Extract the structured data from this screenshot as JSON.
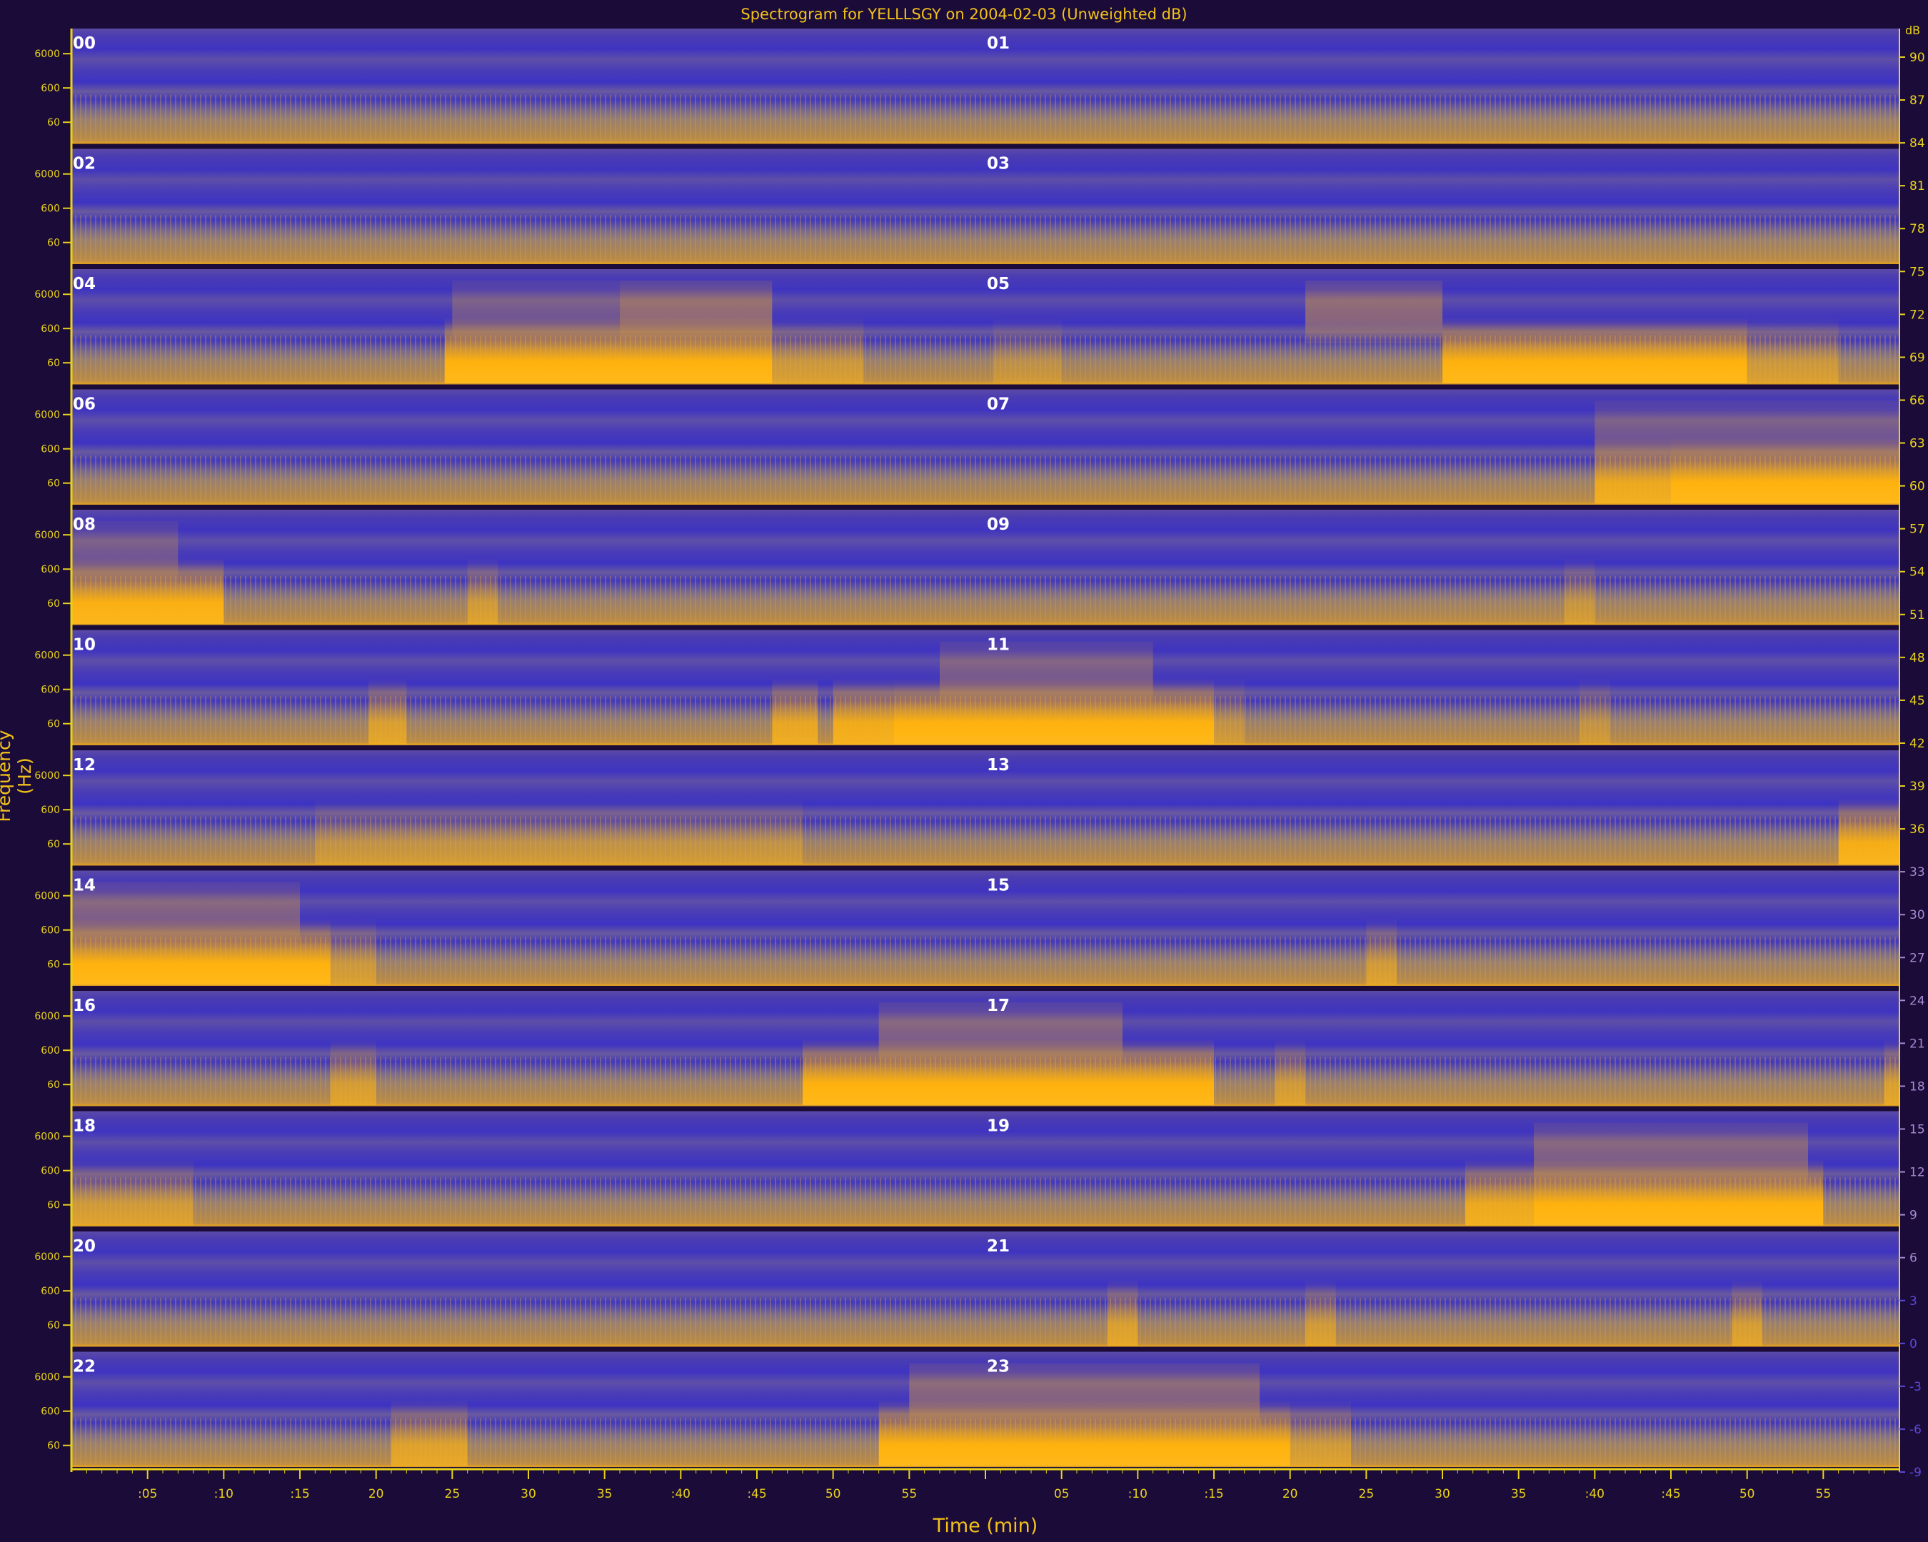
{
  "chart_data": {
    "type": "heatmap",
    "title": "Spectrogram for YELLLSGY on 2004-02-03 (Unweighted dB)",
    "xlabel": "Time (min)",
    "ylabel": "Frequency (Hz)",
    "panel_hours": [
      "00",
      "01",
      "02",
      "03",
      "04",
      "05",
      "06",
      "07",
      "08",
      "09",
      "10",
      "11",
      "12",
      "13",
      "14",
      "15",
      "16",
      "17",
      "18",
      "19",
      "20",
      "21",
      "22",
      "23"
    ],
    "frequency_ticks": [
      "6000",
      "600",
      "60"
    ],
    "time_ticks": [
      ":05",
      ":10",
      ":15",
      "20",
      "25",
      "30",
      "35",
      ":40",
      ":45",
      "50",
      "55",
      "",
      "05",
      ":10",
      ":15",
      "20",
      "25",
      "30",
      "35",
      ":40",
      ":45",
      "50",
      "55"
    ],
    "colorbar_unit": "dB",
    "colorbar_ticks": [
      90,
      87,
      84,
      81,
      78,
      75,
      72,
      69,
      66,
      63,
      60,
      57,
      54,
      51,
      48,
      45,
      42,
      39,
      36,
      33,
      30,
      27,
      24,
      21,
      18,
      15,
      12,
      9,
      6,
      3,
      0,
      -3,
      -6,
      -9
    ],
    "grid": false,
    "events": [
      {
        "row": 2,
        "start_min": 24.5,
        "end_min": 46,
        "strength": 1.0
      },
      {
        "row": 2,
        "start_min": 46,
        "end_min": 52,
        "strength": 0.45
      },
      {
        "row": 2,
        "start_min": 36,
        "end_min": 46,
        "strength": 0.6,
        "high": true
      },
      {
        "row": 2,
        "start_min": 25,
        "end_min": 36,
        "strength": 0.35,
        "high": true
      },
      {
        "row": 2,
        "start_min": 60.5,
        "end_min": 65,
        "strength": 0.3
      },
      {
        "row": 2,
        "start_min": 81,
        "end_min": 90,
        "strength": 0.55,
        "high": true
      },
      {
        "row": 2,
        "start_min": 90,
        "end_min": 110,
        "strength": 1.0
      },
      {
        "row": 2,
        "start_min": 110,
        "end_min": 116,
        "strength": 0.45
      },
      {
        "row": 3,
        "start_min": 100,
        "end_min": 105,
        "strength": 0.8
      },
      {
        "row": 3,
        "start_min": 105,
        "end_min": 120,
        "strength": 1.0
      },
      {
        "row": 3,
        "start_min": 100,
        "end_min": 120,
        "strength": 0.35,
        "high": true
      },
      {
        "row": 4,
        "start_min": 0,
        "end_min": 10,
        "strength": 0.95
      },
      {
        "row": 4,
        "start_min": 0,
        "end_min": 7,
        "strength": 0.35,
        "high": true
      },
      {
        "row": 4,
        "start_min": 26,
        "end_min": 28,
        "strength": 0.5
      },
      {
        "row": 4,
        "start_min": 98,
        "end_min": 100,
        "strength": 0.4
      },
      {
        "row": 5,
        "start_min": 19.5,
        "end_min": 22,
        "strength": 0.6
      },
      {
        "row": 5,
        "start_min": 46,
        "end_min": 49,
        "strength": 0.75
      },
      {
        "row": 5,
        "start_min": 50,
        "end_min": 54,
        "strength": 0.85
      },
      {
        "row": 5,
        "start_min": 54,
        "end_min": 75,
        "strength": 1.0
      },
      {
        "row": 5,
        "start_min": 57,
        "end_min": 71,
        "strength": 0.4,
        "high": true
      },
      {
        "row": 5,
        "start_min": 75,
        "end_min": 77,
        "strength": 0.35
      },
      {
        "row": 5,
        "start_min": 99,
        "end_min": 101,
        "strength": 0.35
      },
      {
        "row": 6,
        "start_min": 16,
        "end_min": 48,
        "strength": 0.35
      },
      {
        "row": 6,
        "start_min": 116,
        "end_min": 120,
        "strength": 0.9
      },
      {
        "row": 7,
        "start_min": 0,
        "end_min": 17,
        "strength": 1.0
      },
      {
        "row": 7,
        "start_min": 0,
        "end_min": 15,
        "strength": 0.45,
        "high": true
      },
      {
        "row": 7,
        "start_min": 17,
        "end_min": 20,
        "strength": 0.45
      },
      {
        "row": 7,
        "start_min": 85,
        "end_min": 87,
        "strength": 0.5
      },
      {
        "row": 8,
        "start_min": 17,
        "end_min": 20,
        "strength": 0.55
      },
      {
        "row": 8,
        "start_min": 48,
        "end_min": 75,
        "strength": 1.0
      },
      {
        "row": 8,
        "start_min": 53,
        "end_min": 69,
        "strength": 0.45,
        "high": true
      },
      {
        "row": 8,
        "start_min": 79,
        "end_min": 81,
        "strength": 0.5
      },
      {
        "row": 8,
        "start_min": 119,
        "end_min": 120,
        "strength": 0.6
      },
      {
        "row": 9,
        "start_min": 0,
        "end_min": 8,
        "strength": 0.5
      },
      {
        "row": 9,
        "start_min": 91.5,
        "end_min": 96,
        "strength": 0.8
      },
      {
        "row": 9,
        "start_min": 96,
        "end_min": 115,
        "strength": 1.0
      },
      {
        "row": 9,
        "start_min": 96,
        "end_min": 114,
        "strength": 0.45,
        "high": true
      },
      {
        "row": 10,
        "start_min": 68,
        "end_min": 70,
        "strength": 0.6
      },
      {
        "row": 10,
        "start_min": 81,
        "end_min": 83,
        "strength": 0.5
      },
      {
        "row": 10,
        "start_min": 109,
        "end_min": 111,
        "strength": 0.55
      },
      {
        "row": 11,
        "start_min": 21,
        "end_min": 26,
        "strength": 0.65
      },
      {
        "row": 11,
        "start_min": 53,
        "end_min": 80,
        "strength": 1.0
      },
      {
        "row": 11,
        "start_min": 55,
        "end_min": 78,
        "strength": 0.5,
        "high": true
      },
      {
        "row": 11,
        "start_min": 80,
        "end_min": 84,
        "strength": 0.5
      }
    ]
  }
}
